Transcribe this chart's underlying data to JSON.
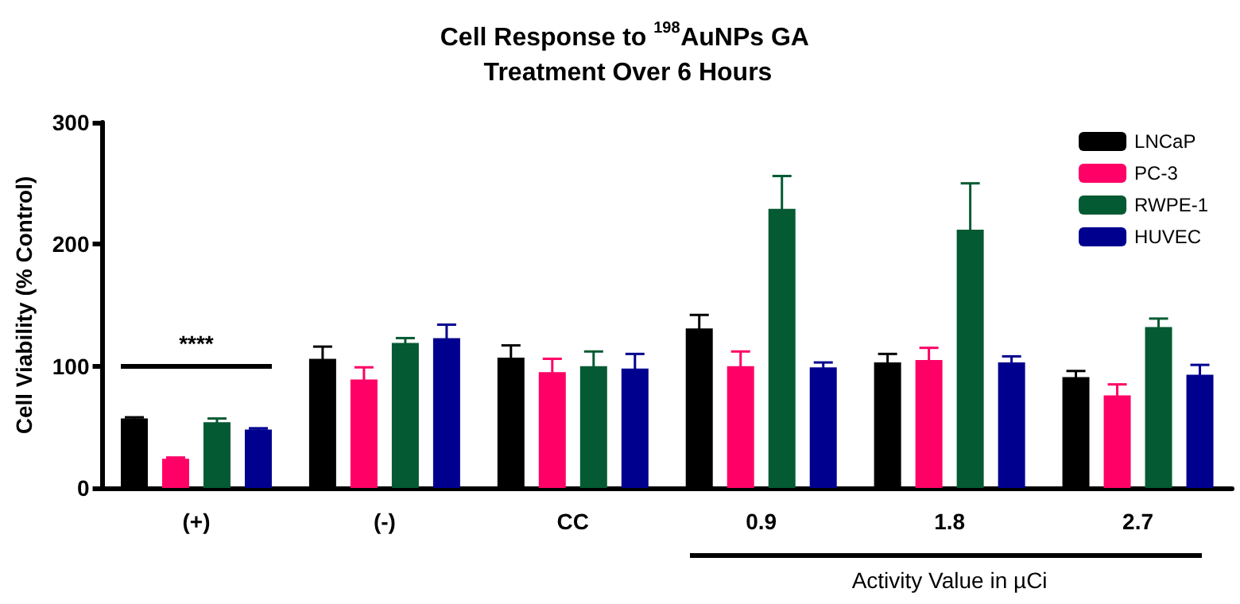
{
  "chart_data": {
    "type": "bar",
    "title": "Cell Response to $^{198}$AuNPs GA Treatment Over 6 Hours",
    "ylabel": "Cell Viability (% Control)",
    "categories": [
      "(+)",
      "(-)",
      "CC",
      "0.9",
      "1.8",
      "2.7"
    ],
    "series": [
      {
        "name": "LNCaP",
        "color": "#000000",
        "values": [
          57,
          106,
          107,
          131,
          103,
          91
        ],
        "errors": [
          1,
          10,
          10,
          11,
          7,
          5
        ]
      },
      {
        "name": "PC-3",
        "color": "#ff0066",
        "values": [
          24,
          89,
          95,
          100,
          105,
          76
        ],
        "errors": [
          1,
          10,
          11,
          12,
          10,
          9
        ]
      },
      {
        "name": "RWPE-1",
        "color": "#045a32",
        "values": [
          54,
          119,
          100,
          229,
          212,
          132
        ],
        "errors": [
          3,
          4,
          12,
          27,
          38,
          7
        ]
      },
      {
        "name": "HUVEC",
        "color": "#00008f",
        "values": [
          48,
          123,
          98,
          99,
          103,
          93
        ],
        "errors": [
          1,
          11,
          12,
          4,
          5,
          8
        ]
      }
    ],
    "ylim": [
      0,
      300
    ],
    "yticks": [
      0,
      100,
      200,
      300
    ],
    "grid": false,
    "legend": "top right",
    "annotations": [
      "****",
      "Activity Value in µCi"
    ]
  }
}
